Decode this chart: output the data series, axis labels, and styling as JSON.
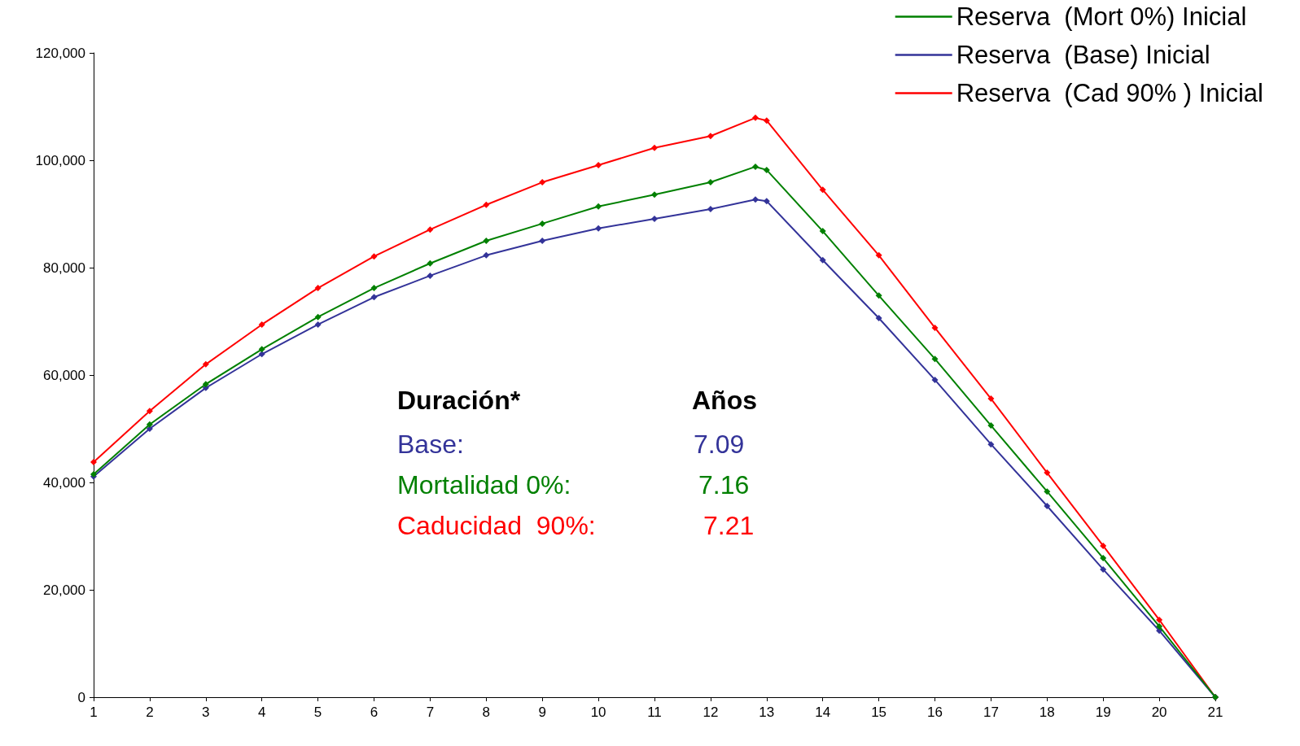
{
  "chart_data": {
    "type": "line",
    "x": [
      1,
      2,
      3,
      4,
      5,
      6,
      7,
      8,
      9,
      10,
      11,
      12,
      12.8,
      13,
      14,
      15,
      16,
      17,
      18,
      19,
      20,
      21
    ],
    "series": [
      {
        "name": "Reserva  (Mort 0%) Inicial",
        "color": "#008000",
        "values": [
          41500,
          50800,
          58300,
          64800,
          70800,
          76200,
          80800,
          85000,
          88200,
          91400,
          93600,
          95900,
          98800,
          98200,
          86800,
          74800,
          63000,
          50600,
          38300,
          25900,
          13200,
          0
        ]
      },
      {
        "name": "Reserva  (Base) Inicial",
        "color": "#333399",
        "values": [
          41100,
          50000,
          57600,
          63900,
          69400,
          74500,
          78500,
          82300,
          85000,
          87300,
          89100,
          90900,
          92700,
          92400,
          81400,
          70600,
          59100,
          47100,
          35600,
          23800,
          12400,
          0
        ]
      },
      {
        "name": "Reserva  (Cad 90% ) Inicial",
        "color": "#ff0000",
        "values": [
          43800,
          53300,
          62000,
          69400,
          76200,
          82100,
          87100,
          91700,
          95900,
          99100,
          102300,
          104500,
          107900,
          107400,
          94500,
          82300,
          68800,
          55600,
          41800,
          28200,
          14400,
          0
        ]
      }
    ],
    "xlim": [
      1,
      21
    ],
    "xticks": [
      1,
      2,
      3,
      4,
      5,
      6,
      7,
      8,
      9,
      10,
      11,
      12,
      13,
      14,
      15,
      16,
      17,
      18,
      19,
      20,
      21
    ],
    "ylim": [
      0,
      120000
    ],
    "yticks": [
      {
        "value": 0,
        "label": "0"
      },
      {
        "value": 20000,
        "label": "20,000"
      },
      {
        "value": 40000,
        "label": "40,000"
      },
      {
        "value": 60000,
        "label": "60,000"
      },
      {
        "value": 80000,
        "label": "80,000"
      },
      {
        "value": 100000,
        "label": "100,000"
      },
      {
        "value": 120000,
        "label": "120,000"
      }
    ],
    "annotations": [
      "Duración*",
      "Años",
      "Base:",
      "7.09",
      "Mortalidad 0%:",
      "7.16",
      "Caducidad  90%:",
      "7.21"
    ],
    "grid": false,
    "legend": "top right",
    "marker": "diamond",
    "line_style": "solid"
  }
}
